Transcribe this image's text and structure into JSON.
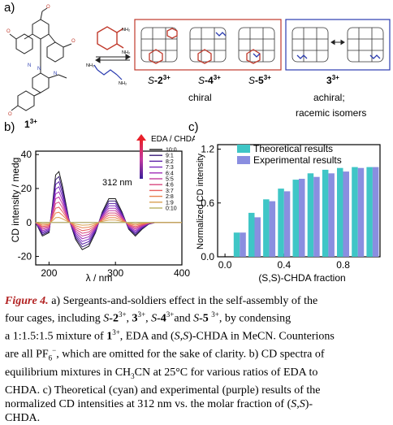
{
  "panel_a": {
    "label": "a)",
    "precursor_label": "1",
    "precursor_charge": "3+",
    "amine_labels": [
      "NH₂",
      "NH₂",
      "NH₂",
      "NH₂"
    ],
    "cages": [
      {
        "prefix": "S",
        "num": "-2",
        "charge": "3+"
      },
      {
        "prefix": "S",
        "num": "-4",
        "charge": "3+"
      },
      {
        "prefix": "S",
        "num": "-5",
        "charge": "3+"
      }
    ],
    "chiral_label": "chiral",
    "achiral_cage": {
      "num": "3",
      "charge": "3+"
    },
    "achiral_label": "achiral;",
    "racemic_label": "racemic isomers"
  },
  "panel_b": {
    "label": "b)",
    "legend_title": "EDA / CHDA",
    "wavelength_label": "312 nm",
    "ylabel": "CD intensity / medg",
    "xlabel": "λ / nm",
    "x_ticks": [
      "200",
      "300",
      "400"
    ],
    "y_ticks": [
      "40",
      "20",
      "0",
      "-20"
    ]
  },
  "panel_c": {
    "label": "c)",
    "ylabel": "Normalized CD intensity",
    "xlabel": "(S,S)-CHDA fraction",
    "x_ticks": [
      "0.0",
      "0.4",
      "0.8"
    ],
    "y_ticks": [
      "1.2",
      "0.6",
      "0.0"
    ],
    "legend": [
      "Theoretical results",
      "Experimental results"
    ]
  },
  "chart_data": [
    {
      "type": "line",
      "xlabel": "λ / nm",
      "ylabel": "CD intensity / medg",
      "xlim": [
        180,
        400
      ],
      "ylim": [
        -25,
        42
      ],
      "legend_title": "EDA / CHDA",
      "annotation": "312 nm",
      "x": [
        180,
        190,
        200,
        205,
        210,
        215,
        220,
        230,
        240,
        250,
        260,
        270,
        280,
        290,
        300,
        310,
        320,
        330,
        340,
        350,
        360,
        380,
        400
      ],
      "base_profile": [
        0,
        -8,
        -6,
        10,
        28,
        30,
        22,
        2,
        -10,
        -16,
        -14,
        -6,
        6,
        14,
        14,
        6,
        -4,
        -8,
        -4,
        -1,
        0,
        0,
        0
      ],
      "series": [
        {
          "name": "10:0",
          "scale": 1.0,
          "color": "#1a1a1a"
        },
        {
          "name": "9:1",
          "scale": 0.9,
          "color": "#3a1e7a"
        },
        {
          "name": "8:2",
          "scale": 0.8,
          "color": "#5a22a8"
        },
        {
          "name": "7:3",
          "scale": 0.7,
          "color": "#7a2ac0"
        },
        {
          "name": "6:4",
          "scale": 0.6,
          "color": "#a030b8"
        },
        {
          "name": "5:5",
          "scale": 0.5,
          "color": "#c43aa0"
        },
        {
          "name": "4:6",
          "scale": 0.4,
          "color": "#d84a80"
        },
        {
          "name": "3:7",
          "scale": 0.3,
          "color": "#e86060"
        },
        {
          "name": "2:8",
          "scale": 0.2,
          "color": "#e8824c"
        },
        {
          "name": "1:9",
          "scale": 0.1,
          "color": "#d8a050"
        },
        {
          "name": "0:10",
          "scale": 0.0,
          "color": "#b8b060"
        }
      ]
    },
    {
      "type": "bar",
      "xlabel": "(S,S)-CHDA fraction",
      "ylabel": "Normalized CD intensity",
      "ylim": [
        0,
        1.25
      ],
      "xlim": [
        -0.05,
        1.05
      ],
      "categories": [
        0.1,
        0.2,
        0.3,
        0.4,
        0.5,
        0.6,
        0.7,
        0.8,
        0.9,
        1.0
      ],
      "series": [
        {
          "name": "Theoretical results",
          "color": "#3fc6c6",
          "values": [
            0.27,
            0.49,
            0.64,
            0.76,
            0.86,
            0.93,
            0.97,
            0.99,
            1.0,
            1.0
          ]
        },
        {
          "name": "Experimental results",
          "color": "#8a8ee0",
          "values": [
            0.27,
            0.44,
            0.62,
            0.73,
            0.87,
            0.89,
            0.93,
            0.95,
            0.99,
            1.0
          ]
        }
      ]
    }
  ]
}
